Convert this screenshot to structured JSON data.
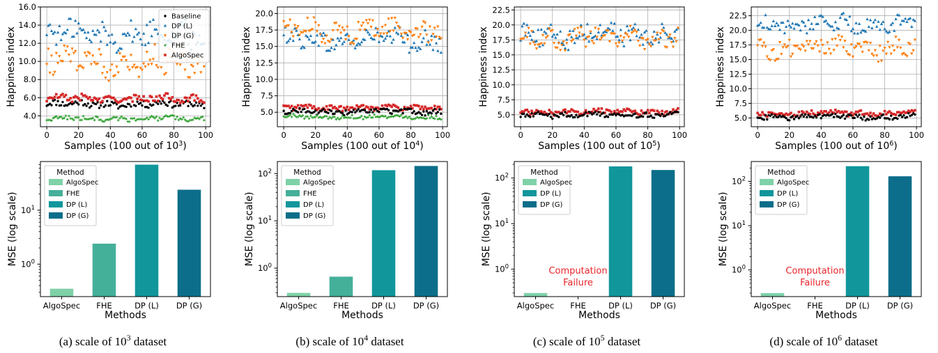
{
  "chart_data": [
    {
      "type": "scatter",
      "panel": "a",
      "ylabel": "Happiness index",
      "xlabel": "Samples (100 out of 10",
      "xlabel_sup": "3",
      "xlabel_tail": ")",
      "xlim": [
        -4,
        103
      ],
      "ylim": [
        2.8,
        16.0
      ],
      "yticks": [
        4.0,
        6.0,
        8.0,
        10.0,
        12.0,
        14.0,
        16.0
      ],
      "ytick_labels": [
        "4.0",
        "6.0",
        "8.0",
        "10.0",
        "12.0",
        "14.0",
        "16.0"
      ],
      "xticks": [
        0,
        20,
        40,
        60,
        80,
        100
      ],
      "xtick_labels": [
        "0",
        "20",
        "40",
        "60",
        "80",
        "100"
      ],
      "grid": true,
      "legend_position": "top-right",
      "series": [
        {
          "name": "Baseline",
          "marker": "circle",
          "color": "#000000",
          "center": 5.3,
          "spread": 0.45,
          "values": []
        },
        {
          "name": "DP (L)",
          "marker": "triangle-up",
          "color": "#1f77b4",
          "center": 13.0,
          "spread": 1.6,
          "values": []
        },
        {
          "name": "DP (G)",
          "marker": "triangle-down",
          "color": "#ff7f0e",
          "center": 10.0,
          "spread": 1.6,
          "values": []
        },
        {
          "name": "FHE",
          "marker": "plus",
          "color": "#2ca02c",
          "center": 3.7,
          "spread": 0.3,
          "values": []
        },
        {
          "name": "AlgoSpec",
          "marker": "square",
          "color": "#d62728",
          "center": 5.9,
          "spread": 0.45,
          "values": []
        }
      ]
    },
    {
      "type": "scatter",
      "panel": "b",
      "ylabel": "Happiness index",
      "xlabel": "Samples (100 out of 10",
      "xlabel_sup": "4",
      "xlabel_tail": ")",
      "xlim": [
        -4,
        103
      ],
      "ylim": [
        2.8,
        21.0
      ],
      "yticks": [
        5.0,
        7.5,
        10.0,
        12.5,
        15.0,
        17.5,
        20.0
      ],
      "ytick_labels": [
        "5.0",
        "7.5",
        "10.0",
        "12.5",
        "15.0",
        "17.5",
        "20.0"
      ],
      "xticks": [
        0,
        20,
        40,
        60,
        80,
        100
      ],
      "xtick_labels": [
        "0",
        "20",
        "40",
        "60",
        "80",
        "100"
      ],
      "grid": true,
      "series": [
        {
          "name": "DP (L)",
          "marker": "triangle-up",
          "color": "#1f77b4",
          "center": 16.0,
          "spread": 1.7,
          "values": []
        },
        {
          "name": "DP (G)",
          "marker": "triangle-down",
          "color": "#ff7f0e",
          "center": 17.5,
          "spread": 1.7,
          "values": []
        },
        {
          "name": "AlgoSpec",
          "marker": "square",
          "color": "#d62728",
          "center": 5.7,
          "spread": 0.45,
          "values": []
        },
        {
          "name": "Baseline",
          "marker": "circle",
          "color": "#000000",
          "center": 5.1,
          "spread": 0.45,
          "values": []
        },
        {
          "name": "FHE",
          "marker": "plus",
          "color": "#2ca02c",
          "center": 4.3,
          "spread": 0.35,
          "values": []
        }
      ]
    },
    {
      "type": "scatter",
      "panel": "c",
      "ylabel": "Happiness index",
      "xlabel": "Samples (100 out of 10",
      "xlabel_sup": "5",
      "xlabel_tail": ")",
      "xlim": [
        -4,
        103
      ],
      "ylim": [
        3.0,
        23.0
      ],
      "yticks": [
        5.0,
        7.5,
        10.0,
        12.5,
        15.0,
        17.5,
        20.0,
        22.5
      ],
      "ytick_labels": [
        "5.0",
        "7.5",
        "10.0",
        "12.5",
        "15.0",
        "17.5",
        "20.0",
        "22.5"
      ],
      "xticks": [
        0,
        20,
        40,
        60,
        80,
        100
      ],
      "xtick_labels": [
        "0",
        "20",
        "40",
        "60",
        "80",
        "100"
      ],
      "grid": true,
      "series": [
        {
          "name": "DP (L)",
          "marker": "triangle-up",
          "color": "#1f77b4",
          "center": 18.5,
          "spread": 2.0,
          "values": []
        },
        {
          "name": "DP (G)",
          "marker": "triangle-down",
          "color": "#ff7f0e",
          "center": 18.0,
          "spread": 1.8,
          "values": []
        },
        {
          "name": "AlgoSpec",
          "marker": "square",
          "color": "#d62728",
          "center": 5.5,
          "spread": 0.5,
          "values": []
        },
        {
          "name": "Baseline",
          "marker": "circle",
          "color": "#000000",
          "center": 5.0,
          "spread": 0.5,
          "values": []
        }
      ]
    },
    {
      "type": "scatter",
      "panel": "d",
      "ylabel": "Happiness index",
      "xlabel": "Samples (100 out of 10",
      "xlabel_sup": "6",
      "xlabel_tail": ")",
      "xlim": [
        -4,
        103
      ],
      "ylim": [
        3.5,
        24.0
      ],
      "yticks": [
        5.0,
        7.5,
        10.0,
        12.5,
        15.0,
        17.5,
        20.0,
        22.5
      ],
      "ytick_labels": [
        "5.0",
        "7.5",
        "10.0",
        "12.5",
        "15.0",
        "17.5",
        "20.0",
        "22.5"
      ],
      "xticks": [
        0,
        20,
        40,
        60,
        80,
        100
      ],
      "xtick_labels": [
        "0",
        "20",
        "40",
        "60",
        "80",
        "100"
      ],
      "grid": true,
      "series": [
        {
          "name": "DP (L)",
          "marker": "triangle-up",
          "color": "#1f77b4",
          "center": 21.0,
          "spread": 1.6,
          "values": []
        },
        {
          "name": "DP (G)",
          "marker": "triangle-down",
          "color": "#ff7f0e",
          "center": 17.0,
          "spread": 1.8,
          "values": []
        },
        {
          "name": "AlgoSpec",
          "marker": "square",
          "color": "#d62728",
          "center": 5.8,
          "spread": 0.5,
          "values": []
        },
        {
          "name": "Baseline",
          "marker": "circle",
          "color": "#000000",
          "center": 5.2,
          "spread": 0.5,
          "values": []
        }
      ]
    },
    {
      "type": "bar",
      "panel": "a",
      "yscale": "log",
      "ylim": [
        0.25,
        80
      ],
      "ylabel": "MSE (log scale)",
      "xlabel": "Methods",
      "categories": [
        "AlgoSpec",
        "FHE",
        "DP (L)",
        "DP (G)"
      ],
      "values": [
        0.35,
        2.4,
        70,
        24
      ],
      "colors": [
        "#7fd1a8",
        "#44b09a",
        "#11969c",
        "#0c6e8a"
      ],
      "legend_title": "Method",
      "legend": [
        "AlgoSpec",
        "FHE",
        "DP (L)",
        "DP (G)"
      ],
      "legend_colors": [
        "#7fd1a8",
        "#44b09a",
        "#11969c",
        "#0c6e8a"
      ],
      "failure_text": [
        "",
        ""
      ]
    },
    {
      "type": "bar",
      "panel": "b",
      "yscale": "log",
      "ylim": [
        0.25,
        180
      ],
      "ylabel": "MSE (log scale)",
      "xlabel": "Methods",
      "categories": [
        "AlgoSpec",
        "FHE",
        "DP (L)",
        "DP (G)"
      ],
      "values": [
        0.3,
        0.66,
        118,
        145
      ],
      "colors": [
        "#7fd1a8",
        "#44b09a",
        "#11969c",
        "#0c6e8a"
      ],
      "legend_title": "Method",
      "legend": [
        "AlgoSpec",
        "FHE",
        "DP (L)",
        "DP (G)"
      ],
      "legend_colors": [
        "#7fd1a8",
        "#44b09a",
        "#11969c",
        "#0c6e8a"
      ],
      "failure_text": [
        "",
        ""
      ]
    },
    {
      "type": "bar",
      "panel": "c",
      "yscale": "log",
      "ylim": [
        0.25,
        230
      ],
      "ylabel": "MSE (log scale)",
      "xlabel": "Methods",
      "categories": [
        "AlgoSpec",
        "FHE",
        "DP (L)",
        "DP (G)"
      ],
      "values": [
        0.3,
        null,
        180,
        150
      ],
      "colors": [
        "#7fd1a8",
        "#44b09a",
        "#11969c",
        "#0c6e8a"
      ],
      "legend_title": "Method",
      "legend": [
        "AlgoSpec",
        "DP (L)",
        "DP (G)"
      ],
      "legend_colors": [
        "#7fd1a8",
        "#11969c",
        "#0c6e8a"
      ],
      "failure_text": [
        "Computation",
        "Failure"
      ]
    },
    {
      "type": "bar",
      "panel": "d",
      "yscale": "log",
      "ylim": [
        0.25,
        280
      ],
      "ylabel": "MSE (log scale)",
      "xlabel": "Methods",
      "categories": [
        "AlgoSpec",
        "FHE",
        "DP (L)",
        "DP (G)"
      ],
      "values": [
        0.3,
        null,
        220,
        130
      ],
      "colors": [
        "#7fd1a8",
        "#44b09a",
        "#11969c",
        "#0c6e8a"
      ],
      "legend_title": "Method",
      "legend": [
        "AlgoSpec",
        "DP (L)",
        "DP (G)"
      ],
      "legend_colors": [
        "#7fd1a8",
        "#11969c",
        "#0c6e8a"
      ],
      "failure_text": [
        "Computation",
        "Failure"
      ]
    }
  ],
  "captions": [
    {
      "pre": "(a) scale of 10",
      "sup": "3",
      "post": " dataset"
    },
    {
      "pre": "(b) scale of 10",
      "sup": "4",
      "post": " dataset"
    },
    {
      "pre": "(c) scale of 10",
      "sup": "5",
      "post": " dataset"
    },
    {
      "pre": "(d) scale of 10",
      "sup": "6",
      "post": " dataset"
    }
  ]
}
